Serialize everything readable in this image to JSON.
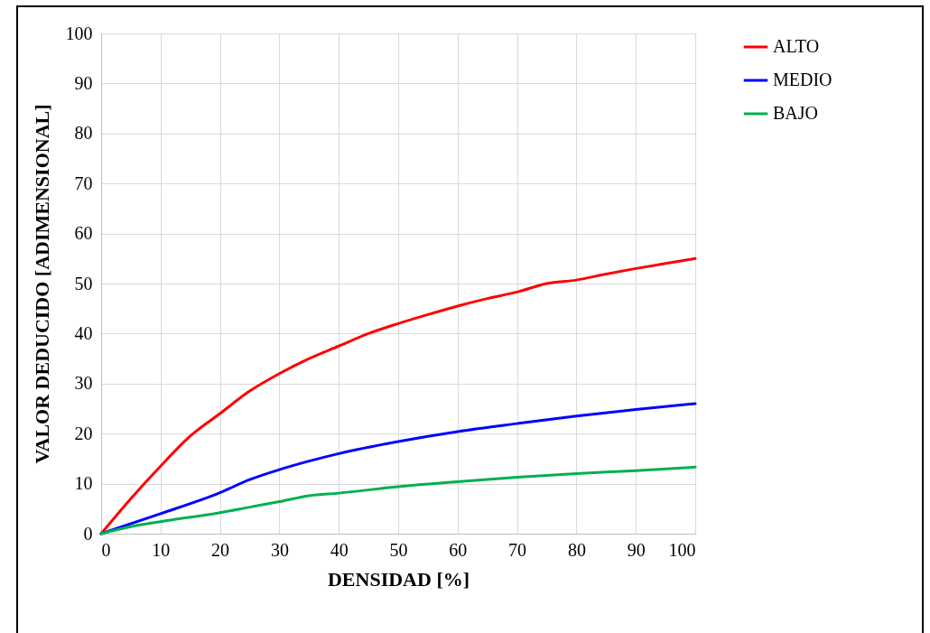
{
  "chart_data": {
    "type": "line",
    "xlabel": "DENSIDAD [%]",
    "ylabel": "VALOR DEDUCIDO [ADIMENSIONAL]",
    "xlim": [
      0,
      100
    ],
    "xticks": [
      0,
      10,
      20,
      30,
      40,
      50,
      60,
      70,
      80,
      90,
      100
    ],
    "ylim": [
      0,
      100
    ],
    "yticks": [
      0,
      10,
      20,
      30,
      40,
      50,
      60,
      70,
      80,
      90,
      100
    ],
    "grid": true,
    "legend": "right",
    "marker": "none",
    "line_style": "solid",
    "series": [
      {
        "name": "ALTO",
        "color": "#ff0000",
        "x": [
          0,
          5,
          10,
          15,
          20,
          25,
          30,
          35,
          40,
          45,
          50,
          55,
          60,
          65,
          70,
          75,
          80,
          85,
          90,
          95,
          100
        ],
        "values": [
          0,
          7,
          13.5,
          19.5,
          24,
          28.5,
          32,
          35,
          37.5,
          40,
          42,
          43.8,
          45.5,
          47,
          48.3,
          50,
          50.7,
          51.9,
          53,
          54,
          55
        ]
      },
      {
        "name": "MEDIO",
        "color": "#0000ff",
        "x": [
          0,
          10,
          20,
          25,
          30,
          35,
          40,
          50,
          60,
          70,
          80,
          90,
          100
        ],
        "values": [
          0,
          4,
          8.2,
          10.8,
          12.8,
          14.5,
          16,
          18.4,
          20.4,
          22,
          23.5,
          24.8,
          26
        ]
      },
      {
        "name": "BAJO",
        "color": "#00b050",
        "x": [
          0,
          5,
          10,
          20,
          25,
          30,
          35,
          40,
          50,
          60,
          70,
          80,
          90,
          100
        ],
        "values": [
          0,
          1.4,
          2.4,
          4.2,
          5.3,
          6.4,
          7.6,
          8.1,
          9.4,
          10.4,
          11.3,
          12,
          12.6,
          13.3
        ]
      }
    ]
  }
}
